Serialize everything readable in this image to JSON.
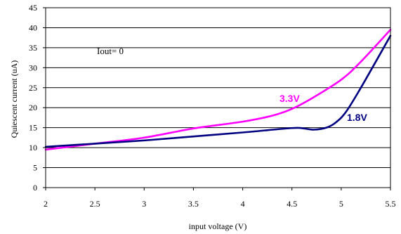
{
  "chart_data": {
    "type": "line",
    "title": "",
    "xlabel": "input voltage (V)",
    "ylabel": "Quiescent current (uA)",
    "xlim": [
      2,
      5.5
    ],
    "ylim": [
      0,
      45
    ],
    "x_ticks": [
      2,
      2.5,
      3,
      3.5,
      4,
      4.5,
      5,
      5.5
    ],
    "x_tick_labels": [
      "2",
      "2.5",
      "3",
      "3.5",
      "4",
      "4.5",
      "5",
      "5.5"
    ],
    "y_ticks": [
      0,
      5,
      10,
      15,
      20,
      25,
      30,
      35,
      40,
      45
    ],
    "y_tick_labels": [
      "0",
      "5",
      "10",
      "15",
      "20",
      "25",
      "30",
      "35",
      "40",
      "45"
    ],
    "grid": "horizontal",
    "legend": "none",
    "annotation": "Iout= 0",
    "series": [
      {
        "name": "3.3V",
        "color": "#ff00ff",
        "x": [
          2.0,
          2.5,
          3.0,
          3.5,
          4.0,
          4.3,
          4.5,
          4.7,
          5.0,
          5.2,
          5.5
        ],
        "y": [
          9.5,
          11.0,
          12.5,
          14.8,
          16.5,
          18.0,
          19.7,
          22.3,
          27.0,
          31.5,
          39.5
        ]
      },
      {
        "name": "1.8V",
        "color": "#000080",
        "x": [
          2.0,
          2.5,
          3.0,
          3.5,
          4.0,
          4.5,
          4.62,
          4.72,
          4.85,
          4.95,
          5.05,
          5.2,
          5.5
        ],
        "y": [
          10.2,
          11.0,
          11.8,
          12.8,
          13.8,
          14.9,
          14.8,
          14.5,
          15.0,
          16.4,
          19.0,
          25.0,
          38.0
        ]
      }
    ]
  }
}
